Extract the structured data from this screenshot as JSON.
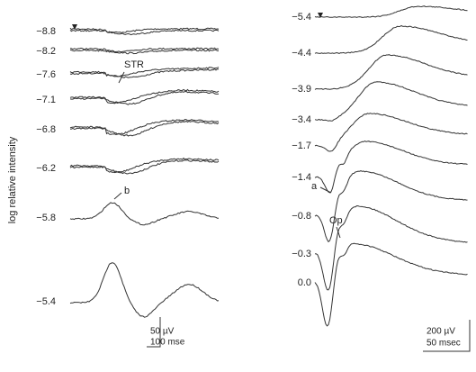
{
  "figure": {
    "y_axis_label": "log relative intensity",
    "left_panel": {
      "labels": [
        "−8.8",
        "−8.2",
        "−7.6",
        "−7.1",
        "−6.8",
        "−6.2",
        "−5.8",
        "−5.4"
      ],
      "annotations": [
        "STR",
        "b"
      ],
      "scale_bar": [
        "50 µV",
        "100 mse"
      ]
    },
    "right_panel": {
      "labels": [
        "−5.4",
        "−4.4",
        "−3.9",
        "−3.4",
        "−1.7",
        "−1.4",
        "−0.8",
        "−0.3",
        "0.0"
      ],
      "annotations": [
        "a",
        "Op"
      ],
      "scale_bar": [
        "200 µV",
        "50 msec"
      ]
    }
  }
}
